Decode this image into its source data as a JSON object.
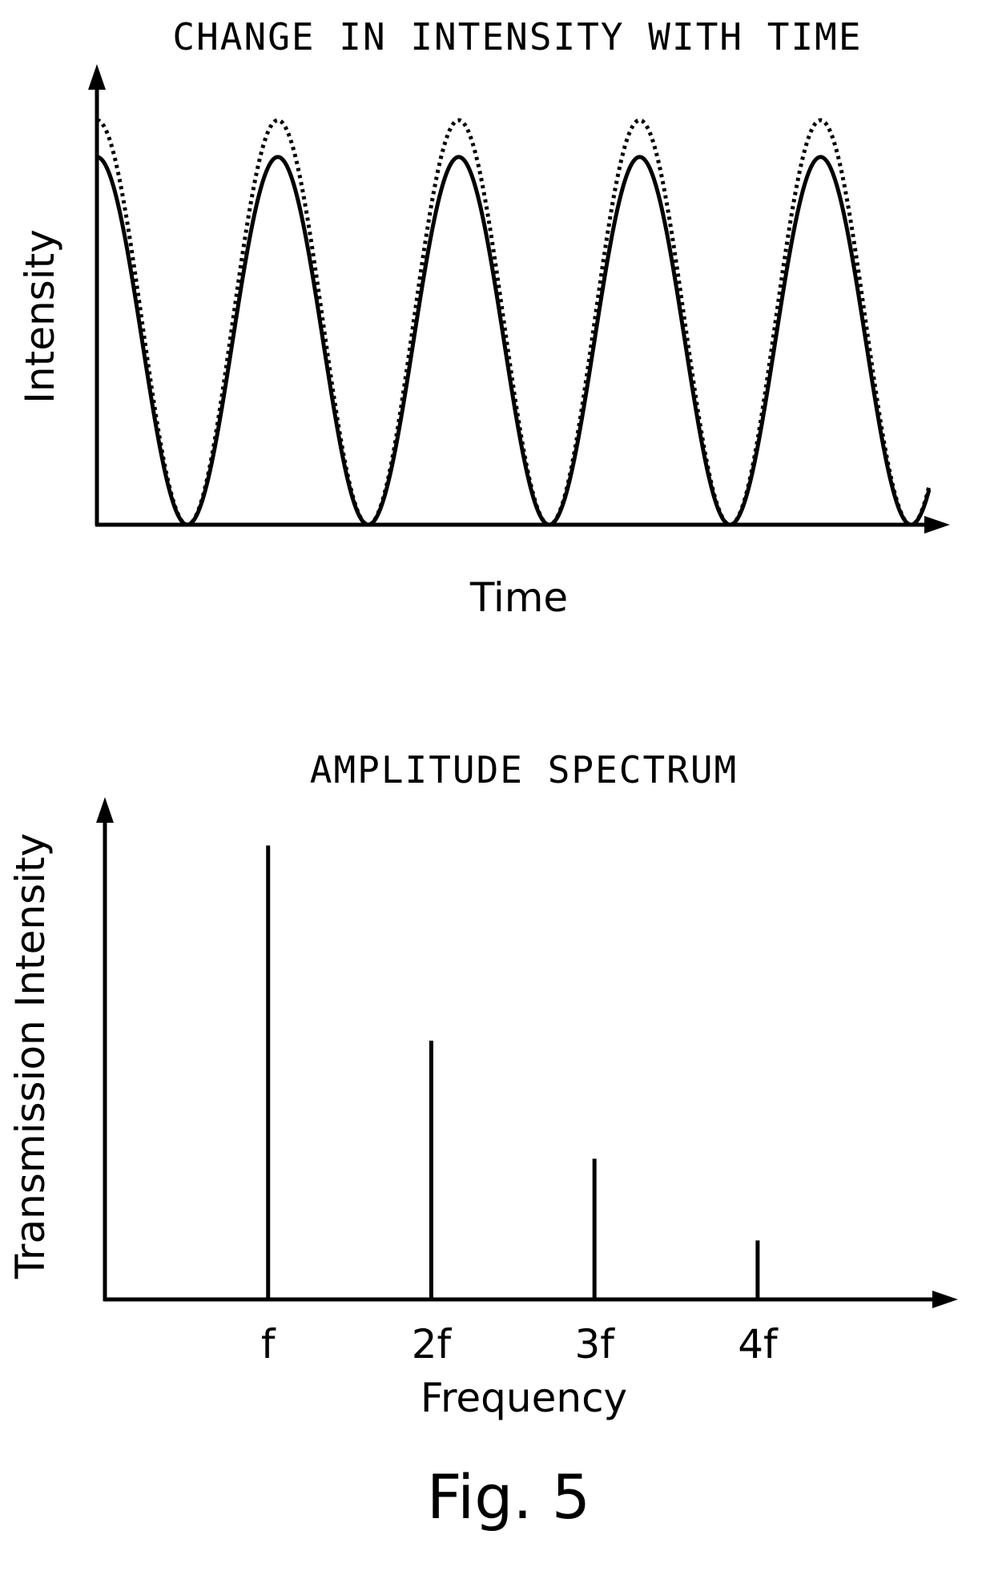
{
  "chart_data": [
    {
      "type": "line",
      "title": "CHANGE IN INTENSITY WITH TIME",
      "xlabel": "Time",
      "ylabel": "Intensity",
      "x_range": [
        0,
        4.6
      ],
      "ylim": [
        0,
        1.1
      ],
      "grid": false,
      "series": [
        {
          "style": "solid",
          "period": 1.0,
          "peak": 1.0,
          "minimum": 0.0,
          "x_of_first_peak": 0.0
        },
        {
          "style": "dotted",
          "period": 1.0,
          "peak": 1.1,
          "minimum": 0.0,
          "x_of_first_peak": 0.0
        }
      ]
    },
    {
      "type": "bar",
      "title": "AMPLITUDE SPECTRUM",
      "xlabel": "Frequency",
      "ylabel": "Transmission Intensity",
      "categories": [
        "f",
        "2f",
        "3f",
        "4f"
      ],
      "values": [
        1.0,
        0.57,
        0.31,
        0.13
      ],
      "x_positions": [
        1,
        2,
        3,
        4
      ],
      "x_range": [
        0,
        5.1
      ],
      "ylim": [
        0,
        1.05
      ],
      "grid": false
    }
  ],
  "caption": "Fig. 5"
}
